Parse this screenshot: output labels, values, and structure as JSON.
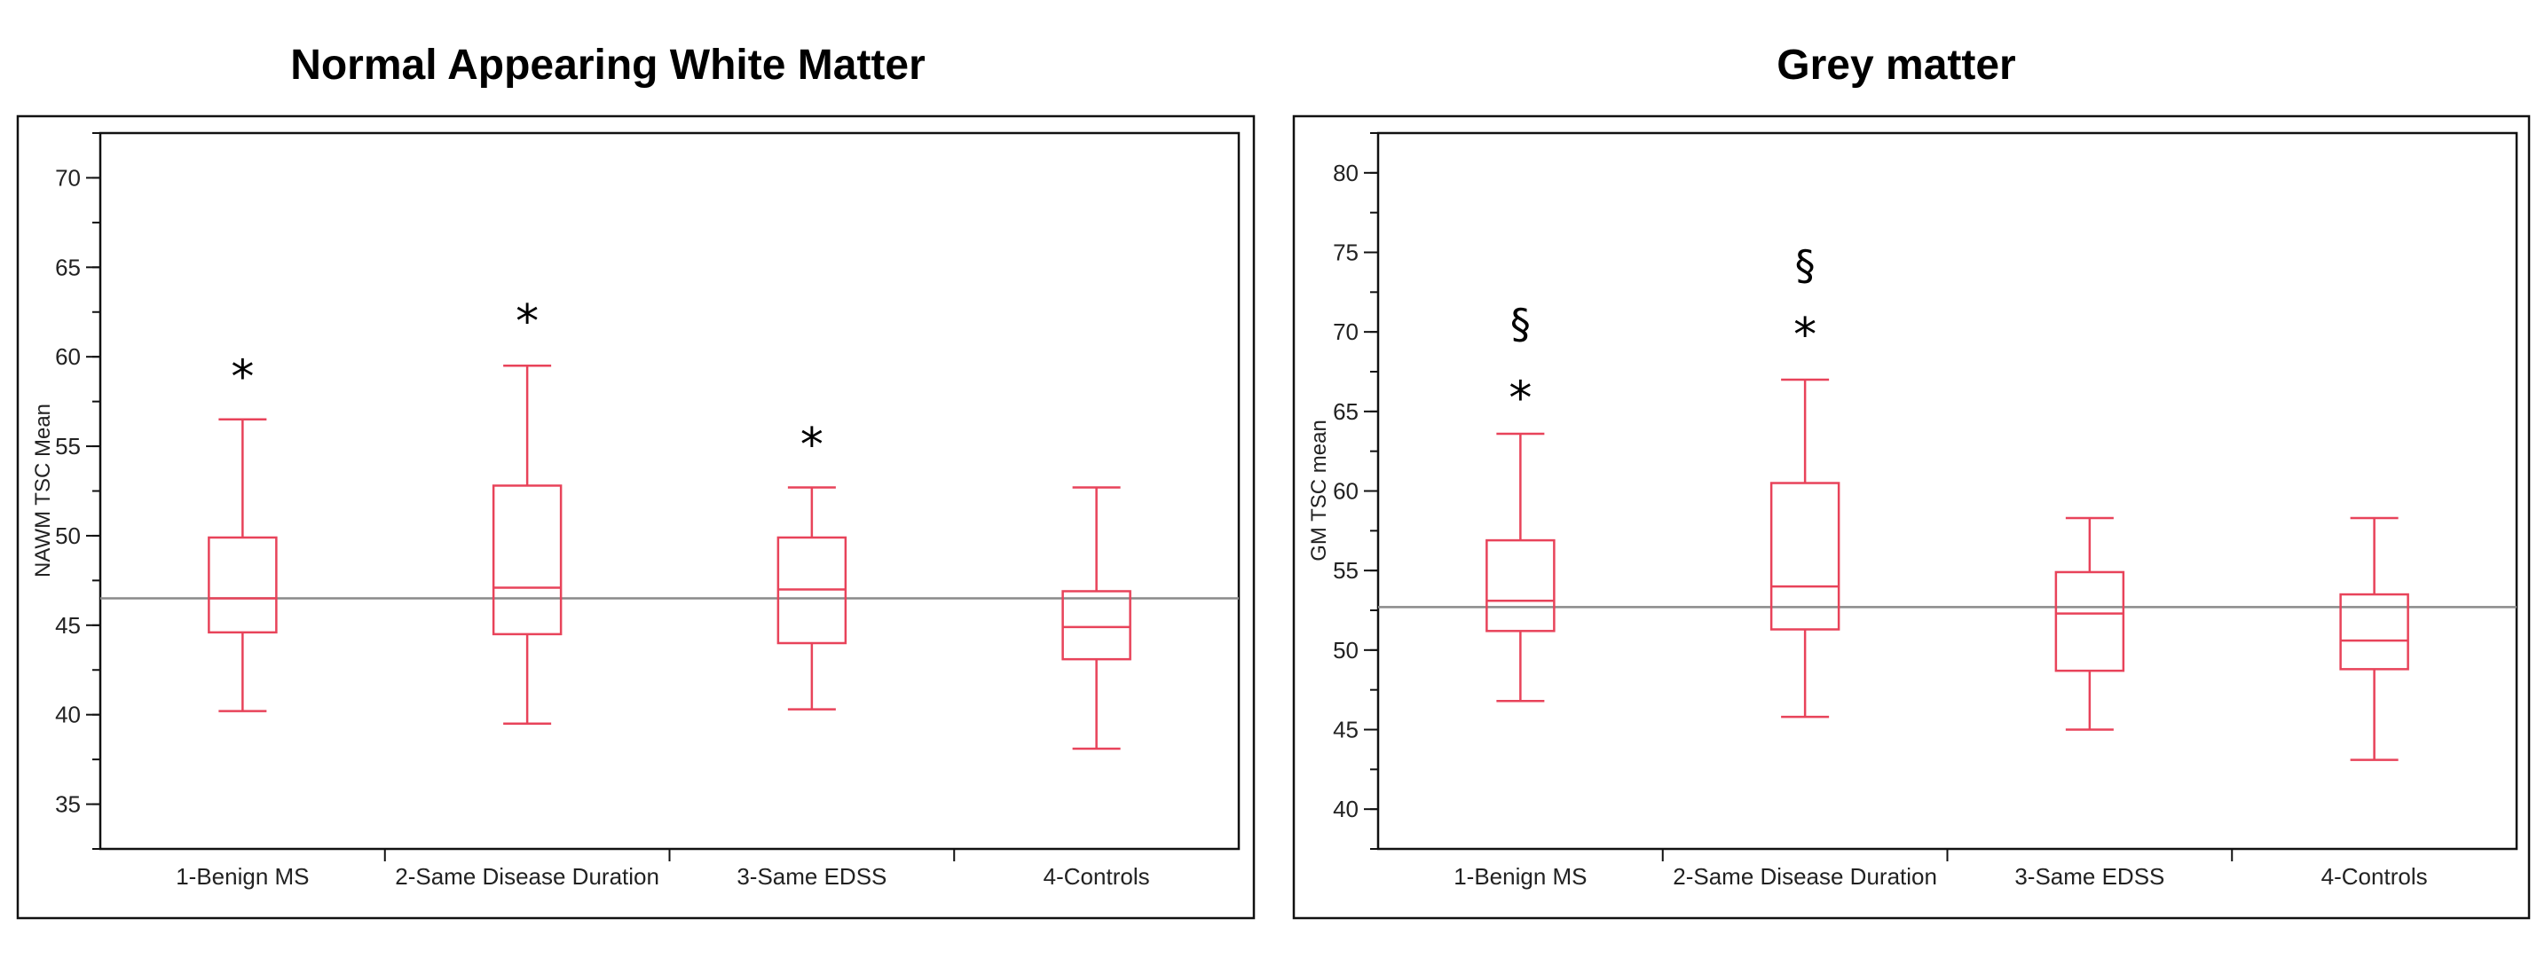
{
  "colors": {
    "box": "#e8435a",
    "axis": "#111111",
    "refline": "#8a8a8a"
  },
  "chart_data": [
    {
      "type": "boxplot",
      "title": "Normal Appearing White Matter",
      "ylabel": "NAWM TSC Mean",
      "xlabel": "",
      "ylim": [
        32.5,
        72.5
      ],
      "yticks": [
        35,
        40,
        45,
        50,
        55,
        60,
        65,
        70
      ],
      "minor_step": 2.5,
      "reference_line": 46.5,
      "categories": [
        "1-Benign MS",
        "2-Same Disease Duration",
        "3-Same EDSS",
        "4-Controls"
      ],
      "boxes": [
        {
          "min": 40.2,
          "q1": 44.6,
          "median": 46.5,
          "q3": 49.9,
          "max": 56.5
        },
        {
          "min": 39.5,
          "q1": 44.5,
          "median": 47.1,
          "q3": 52.8,
          "max": 59.5
        },
        {
          "min": 40.3,
          "q1": 44.0,
          "median": 47.0,
          "q3": 49.9,
          "max": 52.7
        },
        {
          "min": 38.1,
          "q1": 43.1,
          "median": 44.9,
          "q3": 46.9,
          "max": 52.7
        }
      ],
      "annotations": [
        {
          "category": 0,
          "text": "*",
          "y": 59.3
        },
        {
          "category": 1,
          "text": "*",
          "y": 62.4
        },
        {
          "category": 2,
          "text": "*",
          "y": 55.5
        }
      ]
    },
    {
      "type": "boxplot",
      "title": "Grey matter",
      "ylabel": "GM TSC mean",
      "xlabel": "",
      "ylim": [
        37.5,
        82.5
      ],
      "yticks": [
        40,
        45,
        50,
        55,
        60,
        65,
        70,
        75,
        80
      ],
      "minor_step": 2.5,
      "reference_line": 52.7,
      "categories": [
        "1-Benign MS",
        "2-Same Disease Duration",
        "3-Same EDSS",
        "4-Controls"
      ],
      "boxes": [
        {
          "min": 46.8,
          "q1": 51.2,
          "median": 53.1,
          "q3": 56.9,
          "max": 63.6
        },
        {
          "min": 45.8,
          "q1": 51.3,
          "median": 54.0,
          "q3": 60.5,
          "max": 67.0
        },
        {
          "min": 45.0,
          "q1": 48.7,
          "median": 52.3,
          "q3": 54.9,
          "max": 58.3
        },
        {
          "min": 43.1,
          "q1": 48.8,
          "median": 50.6,
          "q3": 53.5,
          "max": 58.3
        }
      ],
      "annotations": [
        {
          "category": 0,
          "text": "§",
          "y": 70.5
        },
        {
          "category": 0,
          "text": "*",
          "y": 66.3
        },
        {
          "category": 1,
          "text": "§",
          "y": 74.2
        },
        {
          "category": 1,
          "text": "*",
          "y": 70.3
        }
      ]
    }
  ]
}
